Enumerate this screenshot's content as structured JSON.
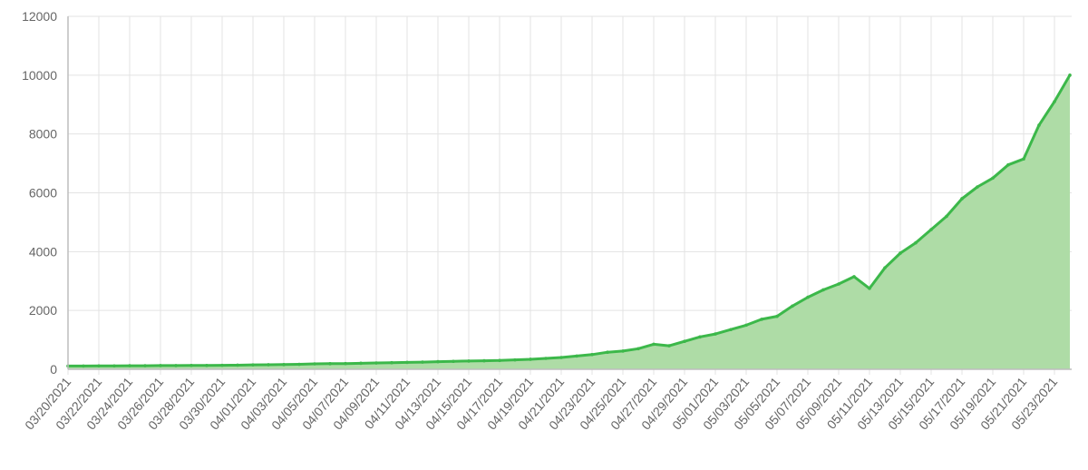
{
  "chart_data": {
    "type": "area",
    "title": "",
    "xlabel": "",
    "ylabel": "",
    "ylim": [
      0,
      12000
    ],
    "y_ticks": [
      "0",
      "2000",
      "4000",
      "6000",
      "8000",
      "10000",
      "12000"
    ],
    "grid": true,
    "legend": "none",
    "colors": {
      "line": "#3cb84a",
      "fill": "#aedca6",
      "grid": "#e3e3e3",
      "axis": "#bdbdbd"
    },
    "x_tick_labels": [
      "03/20/2021",
      "03/22/2021",
      "03/24/2021",
      "03/26/2021",
      "03/28/2021",
      "03/30/2021",
      "04/01/2021",
      "04/03/2021",
      "04/05/2021",
      "04/07/2021",
      "04/09/2021",
      "04/11/2021",
      "04/13/2021",
      "04/15/2021",
      "04/17/2021",
      "04/19/2021",
      "04/21/2021",
      "04/23/2021",
      "04/25/2021",
      "04/27/2021",
      "04/29/2021",
      "05/01/2021",
      "05/03/2021",
      "05/05/2021",
      "05/07/2021",
      "05/09/2021",
      "05/11/2021",
      "05/13/2021",
      "05/15/2021",
      "05/17/2021",
      "05/19/2021",
      "05/21/2021",
      "05/23/2021"
    ],
    "x": [
      "03/20/2021",
      "03/21/2021",
      "03/22/2021",
      "03/23/2021",
      "03/24/2021",
      "03/25/2021",
      "03/26/2021",
      "03/27/2021",
      "03/28/2021",
      "03/29/2021",
      "03/30/2021",
      "03/31/2021",
      "04/01/2021",
      "04/02/2021",
      "04/03/2021",
      "04/04/2021",
      "04/05/2021",
      "04/06/2021",
      "04/07/2021",
      "04/08/2021",
      "04/09/2021",
      "04/10/2021",
      "04/11/2021",
      "04/12/2021",
      "04/13/2021",
      "04/14/2021",
      "04/15/2021",
      "04/16/2021",
      "04/17/2021",
      "04/18/2021",
      "04/19/2021",
      "04/20/2021",
      "04/21/2021",
      "04/22/2021",
      "04/23/2021",
      "04/24/2021",
      "04/25/2021",
      "04/26/2021",
      "04/27/2021",
      "04/28/2021",
      "04/29/2021",
      "04/30/2021",
      "05/01/2021",
      "05/02/2021",
      "05/03/2021",
      "05/04/2021",
      "05/05/2021",
      "05/06/2021",
      "05/07/2021",
      "05/08/2021",
      "05/09/2021",
      "05/10/2021",
      "05/11/2021",
      "05/12/2021",
      "05/13/2021",
      "05/14/2021",
      "05/15/2021",
      "05/16/2021",
      "05/17/2021",
      "05/18/2021",
      "05/19/2021",
      "05/20/2021",
      "05/21/2021",
      "05/22/2021",
      "05/23/2021",
      "05/24/2021"
    ],
    "series": [
      {
        "values": [
          110,
          110,
          115,
          115,
          120,
          120,
          125,
          125,
          130,
          130,
          135,
          140,
          150,
          155,
          160,
          170,
          185,
          190,
          195,
          205,
          215,
          225,
          235,
          245,
          260,
          270,
          280,
          290,
          300,
          320,
          340,
          370,
          400,
          450,
          500,
          580,
          620,
          700,
          850,
          800,
          950,
          1100,
          1200,
          1350,
          1500,
          1700,
          1800,
          2150,
          2450,
          2700,
          2900,
          3150,
          2750,
          3450,
          3950,
          4300,
          4750,
          5200,
          5800,
          6200,
          6500,
          6950,
          7150,
          8300,
          9100,
          10000
        ]
      }
    ]
  }
}
